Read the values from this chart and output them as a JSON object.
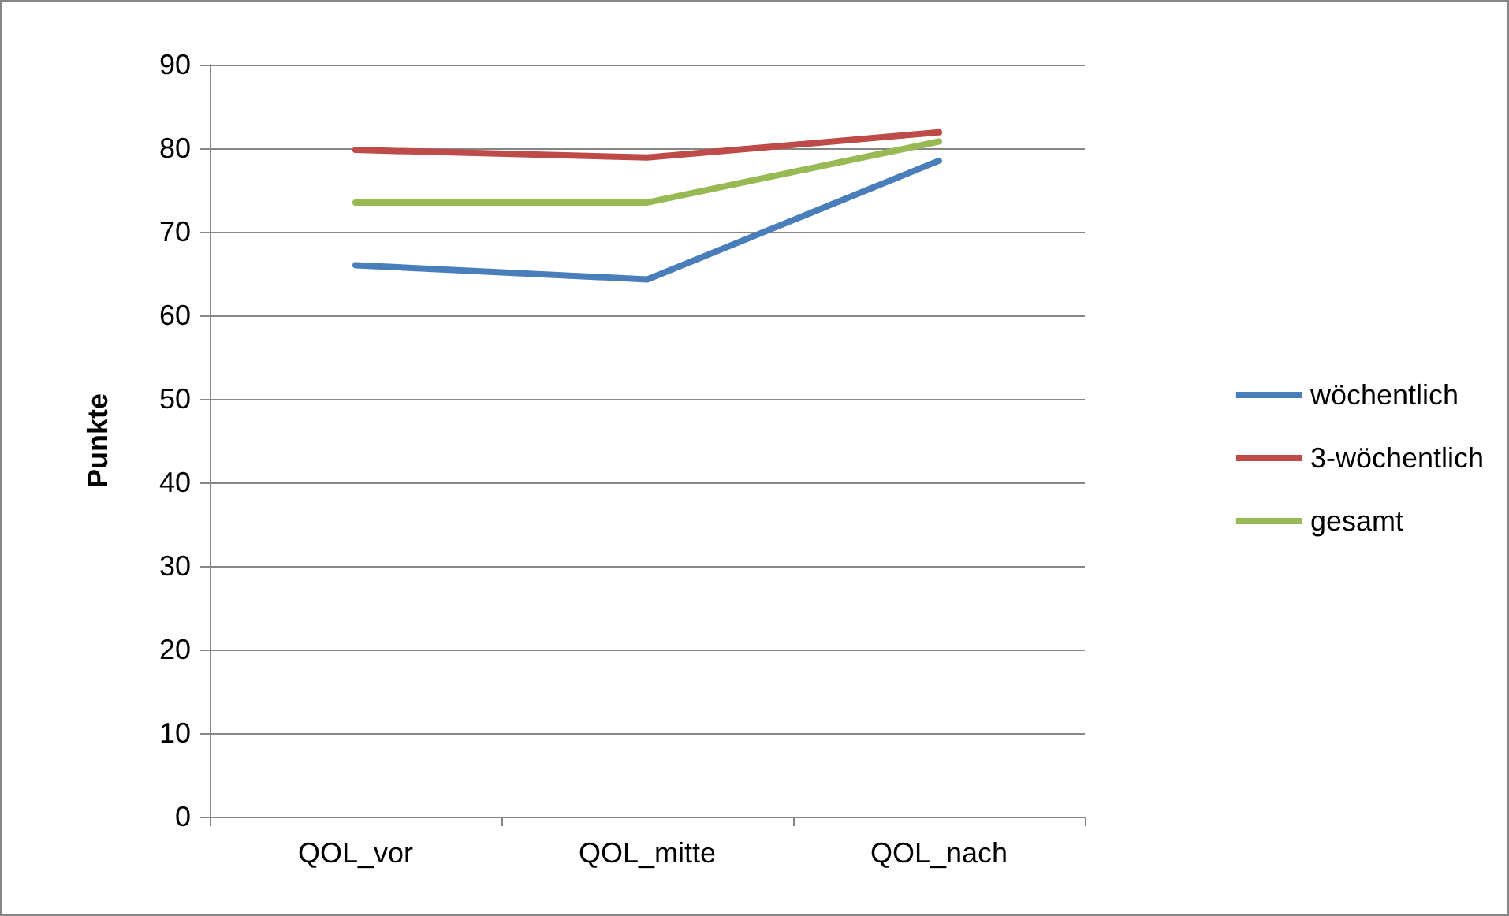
{
  "chart_data": {
    "type": "line",
    "ylabel": "Punkte",
    "categories": [
      "QOL_vor",
      "QOL_mitte",
      "QOL_nach"
    ],
    "series": [
      {
        "name": "wöchentlich",
        "color": "#4a7ebb",
        "values": [
          66,
          64.3,
          78.5
        ]
      },
      {
        "name": "3-wöchentlich",
        "color": "#be4b48",
        "values": [
          79.8,
          78.9,
          81.9
        ]
      },
      {
        "name": "gesamt",
        "color": "#98b954",
        "values": [
          73.5,
          73.5,
          80.8
        ]
      }
    ],
    "ylim": [
      0,
      90
    ],
    "yticks": [
      0,
      10,
      20,
      30,
      40,
      50,
      60,
      70,
      80,
      90
    ],
    "grid": "y",
    "legend": "right",
    "marker": "none",
    "line_style": "solid"
  }
}
